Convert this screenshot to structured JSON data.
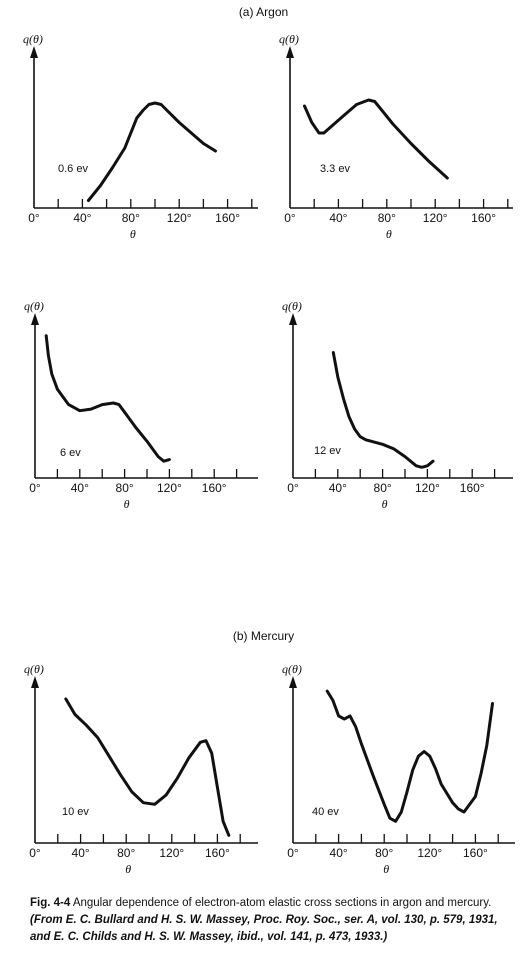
{
  "sections": [
    {
      "label": "(a) Argon"
    },
    {
      "label": "(b) Mercury"
    }
  ],
  "caption": {
    "fig_no": "Fig. 4-4",
    "text": " Angular dependence of electron-atom elastic cross sections in argon and mercury.",
    "source": " (From E. C. Bullard and H. S. W. Massey, Proc. Roy. Soc., ser. A, vol. 130, p. 579, 1931, and E. C. Childs and H. S. W. Massey, ibid., vol. 141, p. 473, 1933.)"
  },
  "ink_color": "#111111",
  "chart_data": [
    {
      "type": "line",
      "section": "Argon",
      "annotation": "0.6 ev",
      "ylabel": "q(θ)",
      "xlabel": "θ",
      "xlim": [
        0,
        180
      ],
      "ylim": [
        0,
        1
      ],
      "xticks": [
        "0°",
        "40°",
        "80°",
        "120°",
        "160°"
      ],
      "x": [
        45,
        55,
        65,
        75,
        80,
        85,
        90,
        95,
        100,
        105,
        110,
        120,
        130,
        140,
        150
      ],
      "y": [
        0.05,
        0.15,
        0.27,
        0.4,
        0.5,
        0.6,
        0.65,
        0.69,
        0.7,
        0.69,
        0.65,
        0.57,
        0.5,
        0.43,
        0.38
      ]
    },
    {
      "type": "line",
      "section": "Argon",
      "annotation": "3.3 ev",
      "ylabel": "q(θ)",
      "xlabel": "θ",
      "xlim": [
        0,
        180
      ],
      "ylim": [
        0,
        1
      ],
      "xticks": [
        "0°",
        "40°",
        "80°",
        "120°",
        "160°"
      ],
      "x": [
        12,
        18,
        24,
        28,
        35,
        45,
        55,
        65,
        70,
        75,
        85,
        100,
        115,
        130
      ],
      "y": [
        0.68,
        0.57,
        0.5,
        0.5,
        0.55,
        0.62,
        0.69,
        0.72,
        0.71,
        0.66,
        0.56,
        0.43,
        0.31,
        0.2
      ]
    },
    {
      "type": "line",
      "section": "Argon",
      "annotation": "6 ev",
      "ylabel": "q(θ)",
      "xlabel": "θ",
      "xlim": [
        0,
        180
      ],
      "ylim": [
        0,
        1
      ],
      "xticks": [
        "0°",
        "40°",
        "80°",
        "120°",
        "160°"
      ],
      "x": [
        10,
        12,
        15,
        20,
        30,
        40,
        50,
        60,
        70,
        75,
        80,
        90,
        100,
        110,
        115,
        120
      ],
      "y": [
        0.93,
        0.8,
        0.68,
        0.58,
        0.48,
        0.44,
        0.45,
        0.48,
        0.49,
        0.48,
        0.43,
        0.33,
        0.24,
        0.14,
        0.11,
        0.12
      ]
    },
    {
      "type": "line",
      "section": "Argon",
      "annotation": "12 ev",
      "ylabel": "q(θ)",
      "xlabel": "θ",
      "xlim": [
        0,
        180
      ],
      "ylim": [
        0,
        1
      ],
      "xticks": [
        "0°",
        "40°",
        "80°",
        "120°",
        "160°"
      ],
      "x": [
        36,
        40,
        45,
        50,
        55,
        60,
        65,
        70,
        80,
        90,
        100,
        110,
        115,
        120,
        125
      ],
      "y": [
        0.82,
        0.66,
        0.52,
        0.4,
        0.32,
        0.27,
        0.25,
        0.24,
        0.22,
        0.19,
        0.14,
        0.08,
        0.07,
        0.08,
        0.11
      ]
    },
    {
      "type": "line",
      "section": "Mercury",
      "annotation": "10 ev",
      "ylabel": "q(θ)",
      "xlabel": "θ",
      "xlim": [
        0,
        180
      ],
      "ylim": [
        0,
        1
      ],
      "xticks": [
        "0°",
        "40°",
        "80°",
        "120°",
        "160°"
      ],
      "x": [
        27,
        35,
        45,
        55,
        65,
        75,
        85,
        95,
        105,
        115,
        125,
        135,
        145,
        150,
        155,
        160,
        165,
        170
      ],
      "y": [
        0.93,
        0.83,
        0.76,
        0.68,
        0.56,
        0.44,
        0.33,
        0.26,
        0.25,
        0.31,
        0.42,
        0.55,
        0.65,
        0.66,
        0.58,
        0.36,
        0.14,
        0.05
      ]
    },
    {
      "type": "line",
      "section": "Mercury",
      "annotation": "40 ev",
      "ylabel": "q(θ)",
      "xlabel": "θ",
      "xlim": [
        0,
        180
      ],
      "ylim": [
        0,
        1
      ],
      "xticks": [
        "0°",
        "40°",
        "80°",
        "120°",
        "160°"
      ],
      "x": [
        30,
        35,
        40,
        45,
        50,
        55,
        60,
        70,
        80,
        85,
        90,
        95,
        100,
        105,
        110,
        115,
        120,
        125,
        130,
        140,
        145,
        150,
        160,
        165,
        170,
        175
      ],
      "y": [
        0.98,
        0.92,
        0.82,
        0.8,
        0.82,
        0.75,
        0.64,
        0.44,
        0.25,
        0.16,
        0.14,
        0.2,
        0.33,
        0.47,
        0.56,
        0.59,
        0.56,
        0.48,
        0.38,
        0.26,
        0.22,
        0.2,
        0.3,
        0.45,
        0.63,
        0.9
      ]
    }
  ]
}
